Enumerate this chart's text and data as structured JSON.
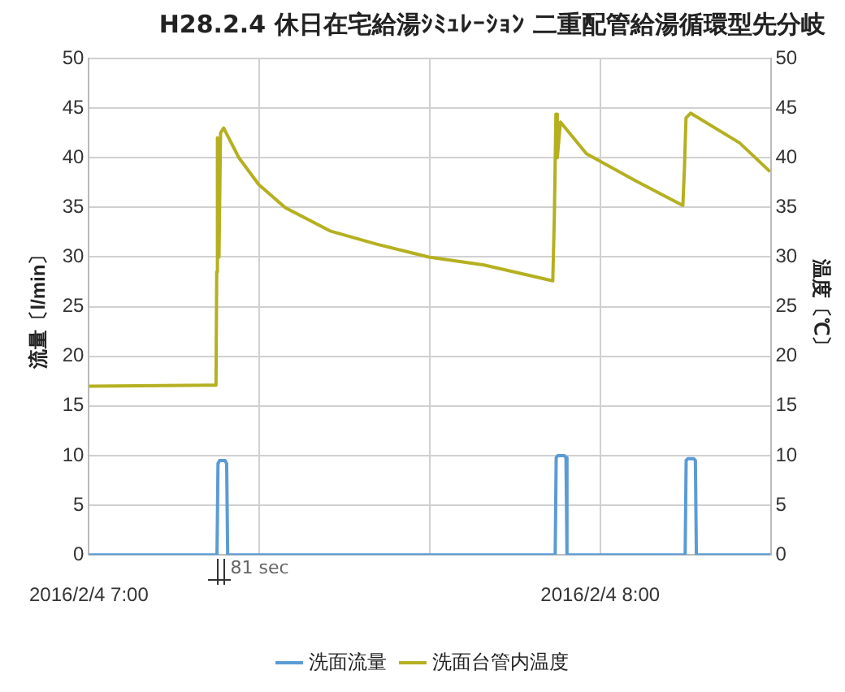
{
  "chart_data": {
    "type": "line",
    "title": "H28.2.4 休日在宅給湯ｼﾐｭﾚｰｼｮﾝ 二重配管給湯循環型先分岐",
    "ylabel": "流量〔l/min〕",
    "y2label": "温度〔℃〕",
    "xlim": [
      "2016-02-04T07:00:00",
      "2016-02-04T08:20:00"
    ],
    "xticks": [
      {
        "value": "2016-02-04T07:00:00",
        "label": "2016/2/4 7:00"
      },
      {
        "value": "2016-02-04T07:20:00",
        "label": null
      },
      {
        "value": "2016-02-04T07:40:00",
        "label": null
      },
      {
        "value": "2016-02-04T08:00:00",
        "label": "2016/2/4 8:00"
      }
    ],
    "ylim": [
      0,
      50
    ],
    "yticks": [
      0,
      5,
      10,
      15,
      20,
      25,
      30,
      35,
      40,
      45,
      50
    ],
    "y2lim": [
      0,
      50
    ],
    "y2ticks": [
      0,
      5,
      10,
      15,
      20,
      25,
      30,
      35,
      40,
      45,
      50
    ],
    "grid": true,
    "legend": "bottom",
    "marker": "none",
    "line_style": "solid",
    "annotations": [
      {
        "text": "81 sec",
        "x": "2016-02-04T07:15:05",
        "y": 0
      }
    ],
    "series": [
      {
        "name": "洗面流量",
        "color": "#5b9bd5",
        "x": [
          "2016-02-04T07:00:00",
          "2016-02-04T07:15:02",
          "2016-02-04T07:15:09",
          "2016-02-04T07:15:20",
          "2016-02-04T07:15:59",
          "2016-02-04T07:16:10",
          "2016-02-04T07:16:17",
          "2016-02-04T07:54:43",
          "2016-02-04T07:54:50",
          "2016-02-04T07:55:01",
          "2016-02-04T07:55:48",
          "2016-02-04T07:55:59",
          "2016-02-04T07:56:06",
          "2016-02-04T08:09:58",
          "2016-02-04T08:10:05",
          "2016-02-04T08:10:16",
          "2016-02-04T08:10:59",
          "2016-02-04T08:11:10",
          "2016-02-04T08:11:17",
          "2016-02-04T08:20:00"
        ],
        "values": [
          0,
          0,
          9.2,
          9.5,
          9.5,
          9.2,
          0,
          0,
          9.8,
          10,
          10,
          9.8,
          0,
          0,
          9.5,
          9.7,
          9.7,
          9.5,
          0,
          0
        ]
      },
      {
        "name": "洗面台管内温度",
        "color": "#b5b020",
        "axis": "y2",
        "x": [
          "2016-02-04T07:00:00",
          "2016-02-04T07:14:55",
          "2016-02-04T07:15:00",
          "2016-02-04T07:15:05",
          "2016-02-04T07:15:16",
          "2016-02-04T07:15:27",
          "2016-02-04T07:15:49",
          "2016-02-04T07:17:36",
          "2016-02-04T07:19:56",
          "2016-02-04T07:23:00",
          "2016-02-04T07:28:23",
          "2016-02-04T07:33:46",
          "2016-02-04T07:39:53",
          "2016-02-04T07:46:21",
          "2016-02-04T07:54:26",
          "2016-02-04T07:54:37",
          "2016-02-04T07:54:48",
          "2016-02-04T07:54:58",
          "2016-02-04T07:55:20",
          "2016-02-04T07:58:23",
          "2016-02-04T08:04:19",
          "2016-02-04T08:09:42",
          "2016-02-04T08:09:53",
          "2016-02-04T08:10:04",
          "2016-02-04T08:10:36",
          "2016-02-04T08:16:21",
          "2016-02-04T08:19:56"
        ],
        "values": [
          17,
          17.1,
          28.5,
          42,
          30,
          42.5,
          43,
          40,
          37.3,
          35,
          32.6,
          31.3,
          30,
          29.2,
          27.6,
          34,
          44.4,
          40,
          43.6,
          40.4,
          37.6,
          35.2,
          39,
          44,
          44.5,
          41.5,
          38.6
        ]
      }
    ]
  }
}
